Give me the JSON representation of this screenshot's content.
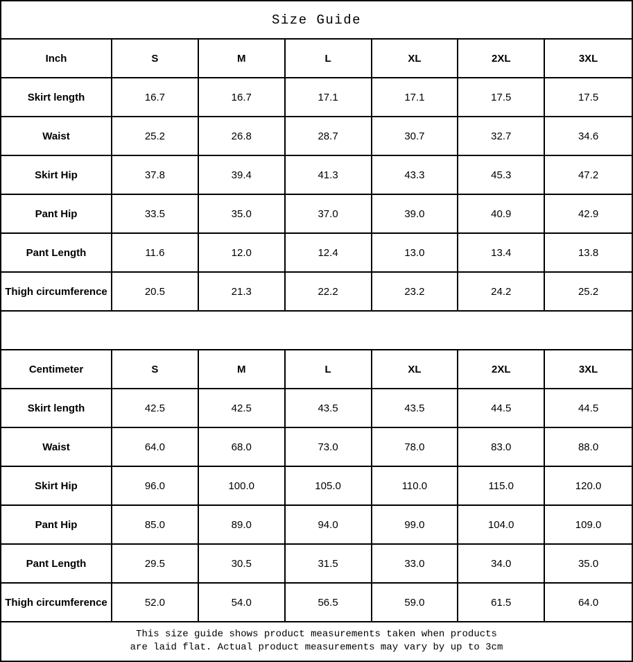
{
  "title": "Size Guide",
  "inch_table": {
    "unit_label": "Inch",
    "size_headers": [
      "S",
      "M",
      "L",
      "XL",
      "2XL",
      "3XL"
    ],
    "rows": [
      {
        "label": "Skirt length",
        "values": [
          "16.7",
          "16.7",
          "17.1",
          "17.1",
          "17.5",
          "17.5"
        ]
      },
      {
        "label": "Waist",
        "values": [
          "25.2",
          "26.8",
          "28.7",
          "30.7",
          "32.7",
          "34.6"
        ]
      },
      {
        "label": "Skirt Hip",
        "values": [
          "37.8",
          "39.4",
          "41.3",
          "43.3",
          "45.3",
          "47.2"
        ]
      },
      {
        "label": "Pant Hip",
        "values": [
          "33.5",
          "35.0",
          "37.0",
          "39.0",
          "40.9",
          "42.9"
        ]
      },
      {
        "label": "Pant Length",
        "values": [
          "11.6",
          "12.0",
          "12.4",
          "13.0",
          "13.4",
          "13.8"
        ]
      },
      {
        "label": "Thigh circumference",
        "values": [
          "20.5",
          "21.3",
          "22.2",
          "23.2",
          "24.2",
          "25.2"
        ]
      }
    ]
  },
  "cm_table": {
    "unit_label": "Centimeter",
    "size_headers": [
      "S",
      "M",
      "L",
      "XL",
      "2XL",
      "3XL"
    ],
    "rows": [
      {
        "label": "Skirt length",
        "values": [
          "42.5",
          "42.5",
          "43.5",
          "43.5",
          "44.5",
          "44.5"
        ]
      },
      {
        "label": "Waist",
        "values": [
          "64.0",
          "68.0",
          "73.0",
          "78.0",
          "83.0",
          "88.0"
        ]
      },
      {
        "label": "Skirt Hip",
        "values": [
          "96.0",
          "100.0",
          "105.0",
          "110.0",
          "115.0",
          "120.0"
        ]
      },
      {
        "label": "Pant Hip",
        "values": [
          "85.0",
          "89.0",
          "94.0",
          "99.0",
          "104.0",
          "109.0"
        ]
      },
      {
        "label": "Pant Length",
        "values": [
          "29.5",
          "30.5",
          "31.5",
          "33.0",
          "34.0",
          "35.0"
        ]
      },
      {
        "label": "Thigh circumference",
        "values": [
          "52.0",
          "54.0",
          "56.5",
          "59.0",
          "61.5",
          "64.0"
        ]
      }
    ]
  },
  "footer": {
    "line1": "This size guide shows product measurements taken when products",
    "line2": "are laid flat. Actual product measurements may vary by up to 3cm"
  },
  "colors": {
    "border": "#000000",
    "text": "#000000",
    "background": "#ffffff"
  },
  "chart_data": [
    {
      "type": "table",
      "title": "Size Guide (Inch)",
      "columns": [
        "Inch",
        "S",
        "M",
        "L",
        "XL",
        "2XL",
        "3XL"
      ],
      "rows": [
        [
          "Skirt length",
          16.7,
          16.7,
          17.1,
          17.1,
          17.5,
          17.5
        ],
        [
          "Waist",
          25.2,
          26.8,
          28.7,
          30.7,
          32.7,
          34.6
        ],
        [
          "Skirt Hip",
          37.8,
          39.4,
          41.3,
          43.3,
          45.3,
          47.2
        ],
        [
          "Pant Hip",
          33.5,
          35.0,
          37.0,
          39.0,
          40.9,
          42.9
        ],
        [
          "Pant Length",
          11.6,
          12.0,
          12.4,
          13.0,
          13.4,
          13.8
        ],
        [
          "Thigh circumference",
          20.5,
          21.3,
          22.2,
          23.2,
          24.2,
          25.2
        ]
      ]
    },
    {
      "type": "table",
      "title": "Size Guide (Centimeter)",
      "columns": [
        "Centimeter",
        "S",
        "M",
        "L",
        "XL",
        "2XL",
        "3XL"
      ],
      "rows": [
        [
          "Skirt length",
          42.5,
          42.5,
          43.5,
          43.5,
          44.5,
          44.5
        ],
        [
          "Waist",
          64.0,
          68.0,
          73.0,
          78.0,
          83.0,
          88.0
        ],
        [
          "Skirt Hip",
          96.0,
          100.0,
          105.0,
          110.0,
          115.0,
          120.0
        ],
        [
          "Pant Hip",
          85.0,
          89.0,
          94.0,
          99.0,
          104.0,
          109.0
        ],
        [
          "Pant Length",
          29.5,
          30.5,
          31.5,
          33.0,
          34.0,
          35.0
        ],
        [
          "Thigh circumference",
          52.0,
          54.0,
          56.5,
          59.0,
          61.5,
          64.0
        ]
      ]
    }
  ]
}
